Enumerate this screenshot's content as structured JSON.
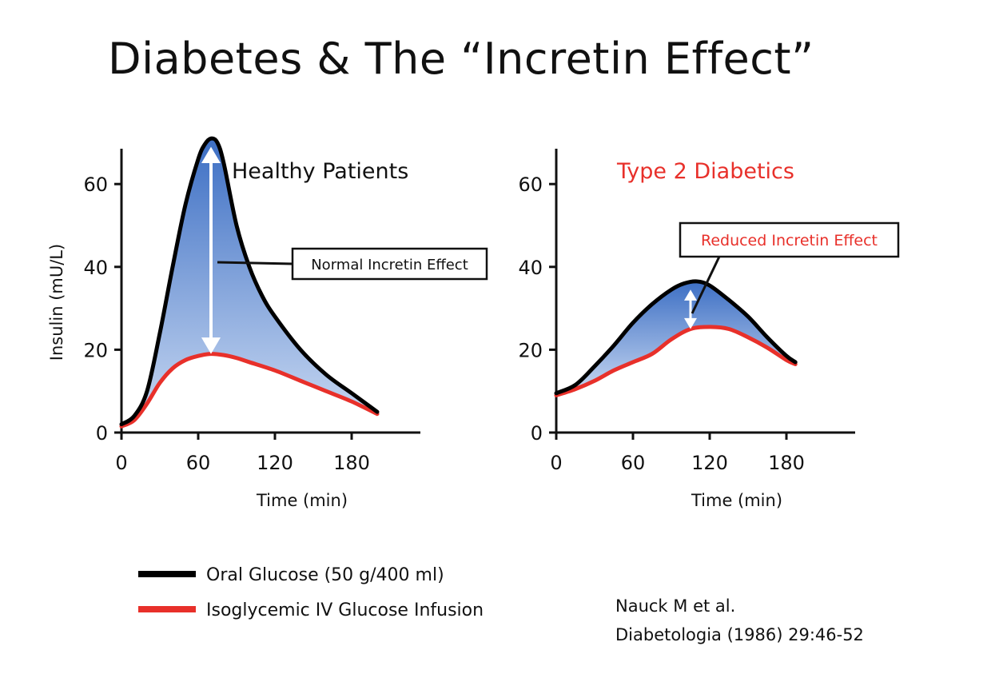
{
  "slide": {
    "title": "Diabetes & The “Incretin Effect”",
    "citation_line1": "Nauck M et al.",
    "citation_line2": "Diabetologia (1986) 29:46-52"
  },
  "legend": {
    "items": [
      {
        "label": "Oral Glucose (50 g/400 ml)",
        "color": "#000000"
      },
      {
        "label": "Isoglycemic IV Glucose Infusion",
        "color": "#e8302a"
      }
    ]
  },
  "colors": {
    "oral": "#000000",
    "iv": "#e8302a",
    "fill_top": "#3d6fc4",
    "fill_bottom": "#c9d9f2",
    "diabetic_title": "#e8302a"
  },
  "chart_data": [
    {
      "type": "area",
      "title": "Healthy Patients",
      "title_color": "#111111",
      "xlabel": "Time (min)",
      "ylabel": "Insulin (mU/L)",
      "xlim": [
        0,
        240
      ],
      "ylim": [
        0,
        70
      ],
      "xticks": [
        0,
        60,
        120,
        180
      ],
      "yticks": [
        0,
        20,
        40,
        60
      ],
      "series": [
        {
          "name": "Oral Glucose (50 g/400 ml)",
          "color": "#000000",
          "x": [
            0,
            10,
            20,
            30,
            40,
            50,
            60,
            65,
            70,
            75,
            80,
            90,
            100,
            110,
            120,
            140,
            160,
            180,
            200
          ],
          "y": [
            2,
            4,
            10,
            24,
            40,
            55,
            66,
            69.5,
            71,
            70,
            65,
            50,
            40,
            33,
            28,
            20,
            14,
            9.5,
            5
          ]
        },
        {
          "name": "Isoglycemic IV Glucose Infusion",
          "color": "#e8302a",
          "x": [
            0,
            10,
            20,
            30,
            40,
            50,
            60,
            70,
            80,
            90,
            100,
            120,
            140,
            160,
            180,
            200
          ],
          "y": [
            1.5,
            3,
            7,
            12,
            15.5,
            17.5,
            18.5,
            19,
            18.7,
            18,
            17,
            15,
            12.5,
            10,
            7.5,
            4.5
          ]
        }
      ],
      "annotation": {
        "label": "Normal Incretin Effect",
        "arrow_x": 70,
        "arrow_y_from": 19,
        "arrow_y_to": 69
      }
    },
    {
      "type": "area",
      "title": "Type 2 Diabetics",
      "title_color": "#e8302a",
      "xlabel": "Time (min)",
      "ylabel": "",
      "xlim": [
        0,
        240
      ],
      "ylim": [
        0,
        70
      ],
      "xticks": [
        0,
        60,
        120,
        180
      ],
      "yticks": [
        0,
        20,
        40,
        60
      ],
      "series": [
        {
          "name": "Oral Glucose (50 g/400 ml)",
          "color": "#000000",
          "x": [
            0,
            15,
            30,
            45,
            60,
            75,
            90,
            100,
            110,
            120,
            135,
            150,
            165,
            180,
            187
          ],
          "y": [
            9.5,
            11.5,
            16,
            21,
            26.5,
            31,
            34.5,
            36,
            36.5,
            35.5,
            32,
            28,
            23,
            18.5,
            17
          ]
        },
        {
          "name": "Isoglycemic IV Glucose Infusion",
          "color": "#e8302a",
          "x": [
            0,
            15,
            30,
            45,
            60,
            75,
            90,
            105,
            120,
            135,
            150,
            165,
            180,
            187
          ],
          "y": [
            9,
            10.5,
            12.5,
            15,
            17,
            19,
            22.5,
            25,
            25.5,
            25,
            23,
            20.5,
            17.5,
            16.5
          ]
        }
      ],
      "annotation": {
        "label": "Reduced Incretin Effect",
        "arrow_x": 105,
        "arrow_y_from": 25,
        "arrow_y_to": 34.5
      }
    }
  ]
}
